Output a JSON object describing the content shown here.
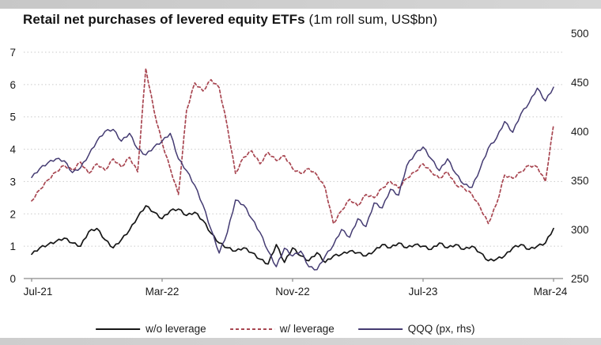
{
  "title": {
    "main": "Retail net purchases of levered equity ETFs",
    "sub": " (1m roll sum, US$bn)"
  },
  "chart_data": {
    "type": "line",
    "title": "Retail net purchases of levered equity ETFs (1m roll sum, US$bn)",
    "x_axis": {
      "unit": "months since Jul-2021 (series sampled every 0.5 month)",
      "range_months": [
        0,
        32
      ],
      "tick_months": [
        0,
        8,
        16,
        24,
        32
      ],
      "tick_labels": [
        "Jul-21",
        "Mar-22",
        "Nov-22",
        "Jul-23",
        "Mar-24"
      ]
    },
    "y_left": {
      "min": 0,
      "max": 7,
      "ticks": [
        0,
        1,
        2,
        3,
        4,
        5,
        6,
        7
      ],
      "applies_to": "ETF net purchases, US$bn"
    },
    "y_right": {
      "min": 250,
      "max": 500,
      "ticks": [
        250,
        300,
        350,
        400,
        450,
        500
      ],
      "applies_to": "QQQ price"
    },
    "grid": "horizontal dotted lines at left-axis integers, no vertical grid",
    "legend_position": "bottom center",
    "series": [
      {
        "name": "w/o leverage",
        "axis": "left",
        "style": "solid",
        "color": "#161616",
        "x_start": 0,
        "x_step": 0.5,
        "values": [
          0.75,
          0.95,
          1.05,
          1.15,
          1.25,
          1.1,
          1.0,
          1.45,
          1.55,
          1.2,
          0.95,
          1.2,
          1.5,
          1.9,
          2.25,
          2.05,
          1.85,
          2.1,
          2.15,
          1.95,
          2.05,
          1.8,
          1.4,
          1.1,
          0.95,
          0.85,
          0.95,
          0.8,
          0.6,
          0.45,
          1.05,
          0.5,
          0.95,
          0.7,
          0.55,
          0.8,
          0.5,
          0.7,
          0.75,
          0.85,
          0.8,
          0.7,
          0.85,
          1.05,
          0.95,
          1.1,
          0.95,
          1.05,
          1.0,
          0.9,
          1.1,
          0.95,
          1.05,
          0.9,
          1.0,
          0.8,
          0.55,
          0.6,
          0.7,
          0.95,
          1.05,
          0.9,
          1.0,
          1.1,
          1.55
        ]
      },
      {
        "name": "w/ leverage",
        "axis": "left",
        "style": "dashed",
        "color": "#a84651",
        "x_start": 0,
        "x_step": 0.5,
        "values": [
          2.4,
          2.75,
          3.05,
          3.3,
          3.5,
          3.35,
          3.6,
          3.25,
          3.55,
          3.35,
          3.7,
          3.45,
          3.75,
          3.3,
          6.5,
          5.2,
          4.2,
          3.4,
          2.6,
          5.2,
          6.05,
          5.8,
          6.15,
          5.9,
          4.7,
          3.25,
          3.75,
          3.95,
          3.55,
          3.9,
          3.65,
          3.8,
          3.4,
          3.25,
          3.4,
          3.2,
          2.8,
          1.7,
          2.1,
          2.45,
          2.25,
          2.6,
          2.5,
          2.8,
          3.0,
          2.8,
          3.1,
          3.3,
          3.55,
          3.3,
          3.1,
          3.3,
          2.9,
          2.8,
          2.6,
          2.2,
          1.7,
          2.3,
          3.2,
          3.1,
          3.3,
          3.5,
          3.45,
          3.0,
          4.75
        ]
      },
      {
        "name": "QQQ (px, rhs)",
        "axis": "right",
        "style": "solid",
        "color": "#443b72",
        "x_start": 0,
        "x_step": 0.5,
        "values": [
          353,
          362,
          368,
          372,
          370,
          358,
          363,
          376,
          390,
          400,
          402,
          390,
          398,
          382,
          376,
          384,
          390,
          398,
          372,
          360,
          345,
          325,
          300,
          276,
          297,
          330,
          325,
          311,
          297,
          278,
          262,
          281,
          273,
          278,
          262,
          259,
          273,
          284,
          300,
          292,
          311,
          303,
          327,
          322,
          341,
          335,
          365,
          377,
          384,
          372,
          360,
          372,
          357,
          346,
          343,
          362,
          383,
          393,
          410,
          399,
          418,
          429,
          444,
          431,
          445
        ]
      }
    ]
  }
}
